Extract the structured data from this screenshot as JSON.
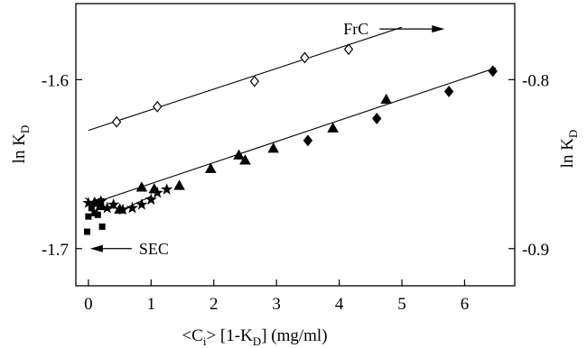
{
  "chart_data": {
    "type": "scatter",
    "title": "",
    "xlabel": {
      "pre": "<C",
      "sub": "i",
      "mid": "> [1-K",
      "sub2": "D",
      "post": "] (mg/ml)"
    },
    "ylabel_left": {
      "main": "ln K",
      "sub": "D"
    },
    "ylabel_right": {
      "main": "ln K",
      "sub": "D"
    },
    "xlim": [
      -0.2,
      6.8
    ],
    "ylim_left": [
      -1.722,
      -1.555
    ],
    "ylim_right": [
      -0.922,
      -0.755
    ],
    "x_ticks": [
      "0",
      "1",
      "2",
      "3",
      "4",
      "5",
      "6"
    ],
    "y_left_ticks": [
      "-1.6",
      "-1.7"
    ],
    "y_right_ticks": [
      "-0.8",
      "-0.9"
    ],
    "grid": false,
    "series": [
      {
        "axis": "left",
        "marker": "diamond-open",
        "x": [
          0.45,
          1.1,
          2.65,
          3.45,
          4.15
        ],
        "y": [
          -1.625,
          -1.616,
          -1.601,
          -1.587,
          -1.582
        ]
      },
      {
        "axis": "right",
        "marker": "diamond-filled",
        "x": [
          3.5,
          4.6,
          5.75,
          6.45
        ],
        "y": [
          -0.836,
          -0.823,
          -0.807,
          -0.795
        ]
      },
      {
        "axis": "right",
        "marker": "triangle-filled",
        "x": [
          0.1,
          0.2,
          0.5,
          0.85,
          1.05,
          1.45,
          1.95,
          2.4,
          2.5,
          2.95,
          3.9,
          4.75
        ],
        "y": [
          -0.873,
          -0.875,
          -0.877,
          -0.864,
          -0.865,
          -0.863,
          -0.853,
          -0.845,
          -0.848,
          -0.841,
          -0.829,
          -0.812
        ]
      },
      {
        "axis": "left",
        "marker": "star-filled",
        "x": [
          0.0,
          0.1,
          0.2,
          0.3,
          0.4,
          0.55,
          0.7,
          0.85,
          1.0,
          1.1,
          1.25
        ],
        "y": [
          -1.673,
          -1.673,
          -1.672,
          -1.676,
          -1.674,
          -1.677,
          -1.676,
          -1.674,
          -1.671,
          -1.667,
          -1.665
        ]
      },
      {
        "axis": "left",
        "marker": "square-filled",
        "x": [
          -0.02,
          0.0,
          0.05,
          0.1,
          0.15,
          0.2,
          0.22
        ],
        "y": [
          -1.69,
          -1.681,
          -1.676,
          -1.679,
          -1.68,
          -1.672,
          -1.687
        ]
      }
    ],
    "fit_lines": [
      {
        "axis": "left",
        "x": [
          0.0,
          5.0
        ],
        "y": [
          -1.63,
          -1.569
        ]
      },
      {
        "axis": "right",
        "x": [
          0.0,
          6.5
        ],
        "y": [
          -0.874,
          -0.793
        ]
      },
      {
        "axis": "right",
        "x": [
          -0.05,
          0.1,
          0.3,
          0.6,
          1.0
        ],
        "y": [
          -0.87,
          -0.874,
          -0.876,
          -0.876,
          -0.869
        ]
      }
    ],
    "annotations": [
      {
        "text": "FrC",
        "arrow": "right",
        "at": [
          4.5,
          -0.77
        ]
      },
      {
        "text": "SEC",
        "arrow": "left",
        "at": [
          0.0,
          -0.9
        ]
      }
    ]
  }
}
